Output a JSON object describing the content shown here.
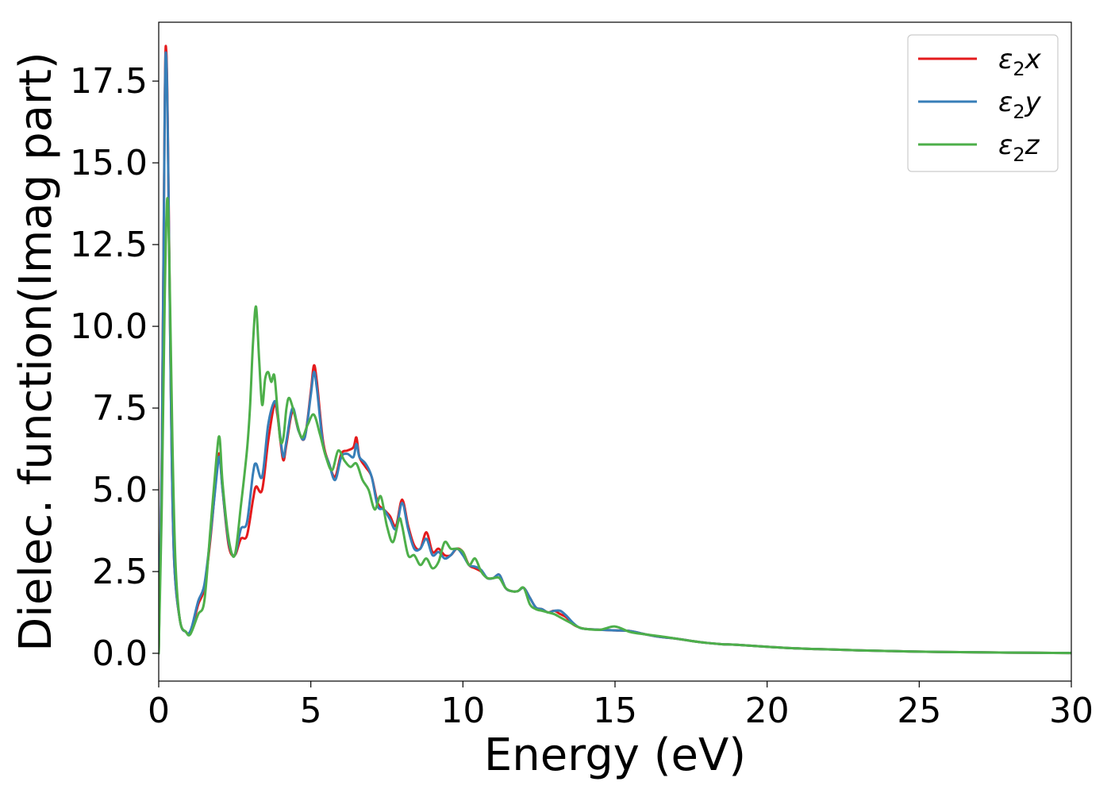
{
  "chart_data": {
    "type": "line",
    "xlabel": "Energy (eV)",
    "ylabel": "Dielec. function(Imag part)",
    "xlim": [
      0,
      30
    ],
    "ylim": [
      -0.85,
      19.3
    ],
    "x_ticks": [
      "0",
      "5",
      "10",
      "15",
      "20",
      "25",
      "30"
    ],
    "y_ticks": [
      "0.0",
      "2.5",
      "5.0",
      "7.5",
      "10.0",
      "12.5",
      "15.0",
      "17.5"
    ],
    "grid": false,
    "legend_position": "top-right",
    "series": [
      {
        "name": "ε₂x",
        "legend_base": "ε",
        "legend_sub": "2",
        "legend_var": "x",
        "color": "#e41a1c",
        "x": [
          0,
          0.1,
          0.2,
          0.25,
          0.3,
          0.4,
          0.5,
          0.7,
          0.9,
          1.0,
          1.1,
          1.3,
          1.5,
          1.7,
          1.9,
          2.0,
          2.1,
          2.3,
          2.5,
          2.7,
          2.9,
          3.1,
          3.2,
          3.4,
          3.6,
          3.8,
          3.9,
          4.0,
          4.1,
          4.2,
          4.4,
          4.6,
          4.8,
          5.0,
          5.1,
          5.2,
          5.4,
          5.6,
          5.8,
          6.0,
          6.2,
          6.4,
          6.5,
          6.6,
          6.8,
          7.0,
          7.2,
          7.4,
          7.6,
          7.8,
          8.0,
          8.2,
          8.4,
          8.6,
          8.8,
          9.0,
          9.2,
          9.4,
          9.6,
          9.8,
          10.0,
          10.2,
          10.4,
          10.6,
          10.8,
          11.0,
          11.2,
          11.4,
          11.6,
          11.8,
          12.0,
          12.2,
          12.4,
          12.6,
          12.8,
          13.0,
          13.2,
          13.4,
          13.6,
          13.8,
          14.0,
          14.5,
          15.0,
          15.5,
          16.0,
          16.5,
          17.0,
          17.5,
          18.0,
          18.5,
          19.0,
          20.0,
          21.0,
          22.0,
          23.0,
          24.0,
          25.0,
          26.0,
          27.0,
          28.0,
          29.0,
          30.0
        ],
        "y": [
          0.0,
          6.0,
          17.0,
          18.4,
          16.0,
          8.0,
          3.0,
          1.0,
          0.65,
          0.6,
          0.8,
          1.5,
          2.0,
          3.5,
          5.5,
          6.1,
          5.0,
          3.3,
          3.0,
          3.5,
          3.6,
          4.7,
          5.1,
          5.0,
          6.5,
          7.6,
          7.3,
          6.5,
          5.9,
          6.4,
          7.4,
          6.8,
          6.6,
          8.0,
          8.8,
          8.3,
          6.5,
          5.8,
          5.4,
          6.1,
          6.2,
          6.3,
          6.6,
          6.0,
          5.7,
          5.4,
          4.6,
          4.4,
          4.2,
          3.9,
          4.7,
          3.9,
          3.3,
          3.2,
          3.7,
          3.1,
          3.2,
          3.0,
          3.0,
          3.2,
          3.1,
          2.7,
          2.6,
          2.5,
          2.3,
          2.3,
          2.4,
          2.0,
          1.9,
          1.9,
          2.0,
          1.7,
          1.4,
          1.35,
          1.25,
          1.3,
          1.2,
          1.1,
          0.9,
          0.8,
          0.75,
          0.72,
          0.7,
          0.68,
          0.58,
          0.5,
          0.45,
          0.38,
          0.32,
          0.28,
          0.26,
          0.2,
          0.15,
          0.12,
          0.09,
          0.07,
          0.05,
          0.04,
          0.03,
          0.02,
          0.015,
          0.01
        ]
      },
      {
        "name": "ε₂y",
        "legend_base": "ε",
        "legend_sub": "2",
        "legend_var": "y",
        "color": "#377eb8",
        "x": [
          0,
          0.1,
          0.2,
          0.25,
          0.3,
          0.4,
          0.5,
          0.7,
          0.9,
          1.0,
          1.1,
          1.3,
          1.5,
          1.7,
          1.9,
          2.0,
          2.1,
          2.3,
          2.5,
          2.7,
          2.9,
          3.1,
          3.2,
          3.4,
          3.6,
          3.8,
          3.9,
          4.0,
          4.1,
          4.2,
          4.4,
          4.6,
          4.8,
          5.0,
          5.1,
          5.2,
          5.4,
          5.6,
          5.8,
          6.0,
          6.2,
          6.4,
          6.5,
          6.6,
          6.8,
          7.0,
          7.2,
          7.4,
          7.6,
          7.8,
          8.0,
          8.2,
          8.4,
          8.6,
          8.8,
          9.0,
          9.2,
          9.4,
          9.6,
          9.8,
          10.0,
          10.2,
          10.4,
          10.6,
          10.8,
          11.0,
          11.2,
          11.4,
          11.6,
          11.8,
          12.0,
          12.2,
          12.4,
          12.6,
          12.8,
          13.0,
          13.2,
          13.4,
          13.6,
          13.8,
          14.0,
          14.5,
          15.0,
          15.5,
          16.0,
          16.5,
          17.0,
          17.5,
          18.0,
          18.5,
          19.0,
          20.0,
          21.0,
          22.0,
          23.0,
          24.0,
          25.0,
          26.0,
          27.0,
          28.0,
          29.0,
          30.0
        ],
        "y": [
          0.0,
          5.8,
          16.8,
          18.2,
          15.8,
          7.9,
          3.0,
          1.0,
          0.65,
          0.62,
          0.85,
          1.6,
          2.1,
          3.6,
          5.4,
          6.0,
          5.0,
          3.4,
          3.0,
          3.8,
          4.0,
          5.5,
          5.8,
          5.4,
          7.0,
          7.7,
          7.4,
          6.6,
          6.0,
          6.5,
          7.5,
          6.8,
          6.6,
          7.9,
          8.6,
          8.1,
          6.4,
          5.8,
          5.3,
          6.0,
          6.1,
          6.0,
          6.4,
          6.0,
          5.8,
          5.4,
          4.5,
          4.4,
          4.1,
          3.8,
          4.6,
          3.8,
          3.2,
          3.2,
          3.5,
          3.0,
          3.1,
          2.9,
          3.0,
          3.2,
          3.0,
          2.7,
          2.65,
          2.55,
          2.3,
          2.3,
          2.4,
          2.0,
          1.9,
          1.9,
          2.0,
          1.7,
          1.4,
          1.35,
          1.25,
          1.3,
          1.3,
          1.15,
          0.95,
          0.8,
          0.75,
          0.72,
          0.7,
          0.68,
          0.58,
          0.5,
          0.45,
          0.38,
          0.32,
          0.28,
          0.26,
          0.2,
          0.15,
          0.12,
          0.09,
          0.07,
          0.05,
          0.04,
          0.03,
          0.02,
          0.015,
          0.01
        ]
      },
      {
        "name": "ε₂z",
        "legend_base": "ε",
        "legend_sub": "2",
        "legend_var": "z",
        "color": "#4daf4a",
        "x": [
          0,
          0.1,
          0.2,
          0.28,
          0.35,
          0.45,
          0.55,
          0.7,
          0.9,
          1.0,
          1.1,
          1.3,
          1.5,
          1.7,
          1.9,
          2.0,
          2.1,
          2.3,
          2.5,
          2.7,
          2.9,
          3.0,
          3.1,
          3.2,
          3.3,
          3.4,
          3.5,
          3.6,
          3.7,
          3.8,
          3.9,
          4.0,
          4.1,
          4.2,
          4.3,
          4.5,
          4.7,
          4.9,
          5.1,
          5.3,
          5.5,
          5.7,
          5.9,
          6.1,
          6.3,
          6.5,
          6.7,
          6.9,
          7.1,
          7.3,
          7.5,
          7.7,
          7.9,
          8.0,
          8.2,
          8.4,
          8.6,
          8.8,
          9.0,
          9.2,
          9.4,
          9.6,
          9.8,
          10.0,
          10.2,
          10.4,
          10.6,
          10.8,
          11.0,
          11.2,
          11.4,
          11.6,
          11.8,
          12.0,
          12.2,
          12.4,
          12.6,
          12.8,
          13.0,
          13.2,
          13.4,
          13.6,
          13.8,
          14.0,
          14.5,
          15.0,
          15.5,
          16.0,
          16.5,
          17.0,
          17.5,
          18.0,
          18.5,
          19.0,
          20.0,
          21.0,
          22.0,
          23.0,
          24.0,
          25.0,
          26.0,
          27.0,
          28.0,
          29.0,
          30.0
        ],
        "y": [
          0.0,
          4.5,
          11.0,
          13.9,
          12.0,
          6.5,
          2.8,
          1.0,
          0.65,
          0.55,
          0.7,
          1.2,
          1.6,
          3.8,
          6.0,
          6.6,
          5.2,
          3.5,
          3.0,
          4.5,
          6.2,
          7.5,
          9.5,
          10.6,
          9.0,
          7.6,
          8.4,
          8.6,
          8.3,
          8.5,
          7.5,
          6.5,
          6.6,
          7.5,
          7.8,
          7.2,
          6.6,
          7.0,
          7.3,
          6.7,
          6.0,
          5.6,
          6.2,
          5.9,
          5.7,
          5.8,
          5.3,
          5.0,
          4.4,
          4.8,
          3.9,
          3.4,
          4.1,
          3.9,
          3.0,
          3.0,
          2.7,
          2.9,
          2.6,
          2.8,
          3.4,
          3.2,
          3.2,
          3.1,
          2.7,
          2.9,
          2.5,
          2.3,
          2.3,
          2.3,
          2.0,
          1.9,
          1.9,
          2.0,
          1.5,
          1.35,
          1.3,
          1.25,
          1.2,
          1.1,
          1.0,
          0.9,
          0.8,
          0.75,
          0.72,
          0.82,
          0.65,
          0.58,
          0.52,
          0.45,
          0.38,
          0.32,
          0.28,
          0.26,
          0.2,
          0.15,
          0.12,
          0.09,
          0.07,
          0.05,
          0.04,
          0.03,
          0.02,
          0.015,
          0.01
        ]
      }
    ]
  }
}
